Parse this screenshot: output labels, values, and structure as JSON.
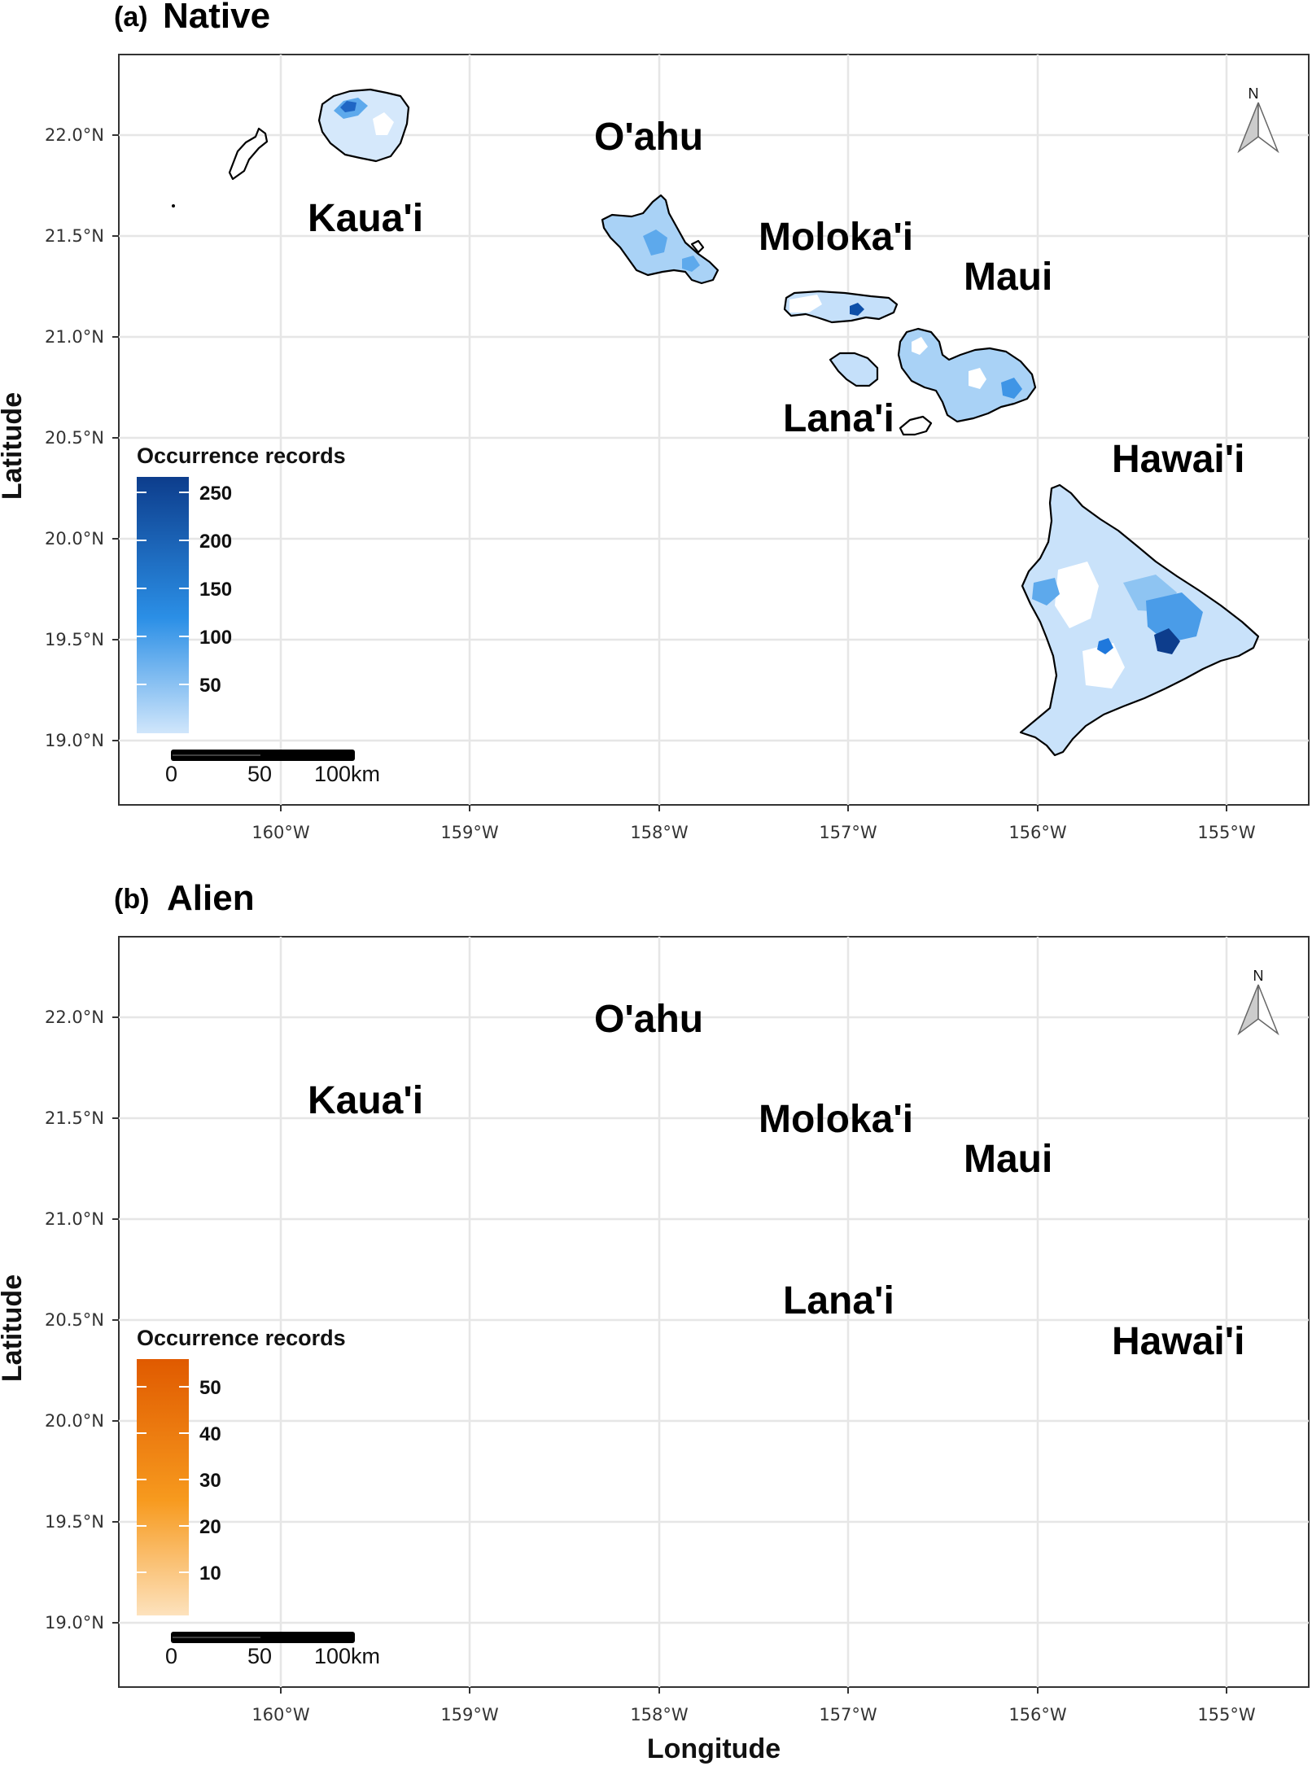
{
  "figure": {
    "x_axis_title": "Longitude",
    "y_axis_title": "Latitude",
    "longitude_ticks": [
      "160°W",
      "159°W",
      "158°W",
      "157°W",
      "156°W",
      "155°W"
    ],
    "latitude_ticks": [
      "22.0°N",
      "21.5°N",
      "21.0°N",
      "20.5°N",
      "20.0°N",
      "19.5°N",
      "19.0°N"
    ],
    "north_arrow_label": "N",
    "scale_bar_labels": [
      "0",
      "50",
      "100km"
    ]
  },
  "panels": [
    {
      "tag": "(a)",
      "title": "Native",
      "legend_title": "Occurrence records",
      "legend_ticks": [
        "250",
        "200",
        "150",
        "100",
        "50"
      ],
      "color_low": "#d0e6fb",
      "color_high": "#0d3d8c",
      "island_labels": [
        "Kaua'i",
        "O'ahu",
        "Moloka'i",
        "Maui",
        "Lana'i",
        "Hawai'i"
      ]
    },
    {
      "tag": "(b)",
      "title": "Alien",
      "legend_title": "Occurrence records",
      "legend_ticks": [
        "50",
        "40",
        "30",
        "20",
        "10"
      ],
      "color_low": "#fde2bd",
      "color_high": "#e05a00",
      "island_labels": [
        "Kaua'i",
        "O'ahu",
        "Moloka'i",
        "Maui",
        "Lana'i",
        "Hawai'i"
      ]
    }
  ]
}
